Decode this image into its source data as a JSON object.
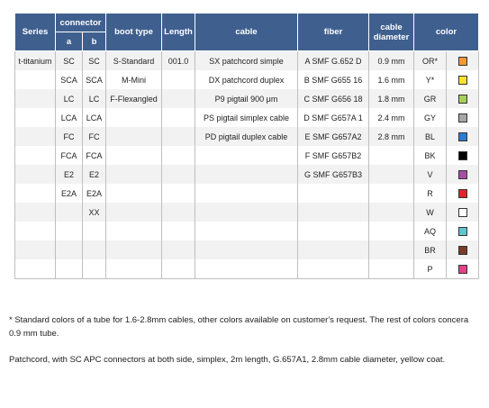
{
  "table": {
    "headers": {
      "series": "Series",
      "connector": "connector",
      "conn_a": "a",
      "conn_b": "b",
      "boot_type": "boot type",
      "length": "Length",
      "cable": "cable",
      "fiber": "fiber",
      "cable_diameter": "cable diameter",
      "color": "color"
    },
    "rows": [
      {
        "series": "t-titanium",
        "a": "SC",
        "b": "SC",
        "boot": "S-Standard",
        "length": "001.0",
        "cable": "SX patchcord simple",
        "fiber": "A SMF G.652 D",
        "diameter": "0.9 mm",
        "color_name": "OR*",
        "color_hex": "#f39a35"
      },
      {
        "series": "",
        "a": "SCA",
        "b": "SCA",
        "boot": "M-Mini",
        "length": "",
        "cable": "DX patchcord duplex",
        "fiber": "B SMF G655 16",
        "diameter": "1.6 mm",
        "color_name": "Y*",
        "color_hex": "#ffe233"
      },
      {
        "series": "",
        "a": "LC",
        "b": "LC",
        "boot": "F-Flexangled",
        "length": "",
        "cable": "P9 pigtail 900 μm",
        "fiber": "C SMF G656 18",
        "diameter": "1.8 mm",
        "color_name": "GR",
        "color_hex": "#a6cf5a"
      },
      {
        "series": "",
        "a": "LCA",
        "b": "LCA",
        "boot": "",
        "length": "",
        "cable": "PS pigtail simplex cable",
        "fiber": "D SMF G657A 1",
        "diameter": "2.4 mm",
        "color_name": "GY",
        "color_hex": "#a6a6a6"
      },
      {
        "series": "",
        "a": "FC",
        "b": "FC",
        "boot": "",
        "length": "",
        "cable": "PD pigtail duplex cable",
        "fiber": "E SMF G657A2",
        "diameter": "2.8 mm",
        "color_name": "BL",
        "color_hex": "#2e7bd1"
      },
      {
        "series": "",
        "a": "FCA",
        "b": "FCA",
        "boot": "",
        "length": "",
        "cable": "",
        "fiber": "F SMF G657B2",
        "diameter": "",
        "color_name": "BK",
        "color_hex": "#000000"
      },
      {
        "series": "",
        "a": "E2",
        "b": "E2",
        "boot": "",
        "length": "",
        "cable": "",
        "fiber": "G SMF G657B3",
        "diameter": "",
        "color_name": "V",
        "color_hex": "#a64fa6"
      },
      {
        "series": "",
        "a": "E2A",
        "b": "E2A",
        "boot": "",
        "length": "",
        "cable": "",
        "fiber": "",
        "diameter": "",
        "color_name": "R",
        "color_hex": "#e2252b"
      },
      {
        "series": "",
        "a": "",
        "b": "XX",
        "boot": "",
        "length": "",
        "cable": "",
        "fiber": "",
        "diameter": "",
        "color_name": "W",
        "color_hex": "#ffffff"
      },
      {
        "series": "",
        "a": "",
        "b": "",
        "boot": "",
        "length": "",
        "cable": "",
        "fiber": "",
        "diameter": "",
        "color_name": "AQ",
        "color_hex": "#5fc6d0"
      },
      {
        "series": "",
        "a": "",
        "b": "",
        "boot": "",
        "length": "",
        "cable": "",
        "fiber": "",
        "diameter": "",
        "color_name": "BR",
        "color_hex": "#7b3b2b"
      },
      {
        "series": "",
        "a": "",
        "b": "",
        "boot": "",
        "length": "",
        "cable": "",
        "fiber": "",
        "diameter": "",
        "color_name": "P",
        "color_hex": "#e6418a"
      }
    ]
  },
  "notes": {
    "standard_colors": "* Standard colors of a tube for 1.6-2.8mm cables, other colors available on customer's request. The rest of colors concera 0.9 mm tube.",
    "example": "Patchcord, with SC APC connectors at both side, simplex, 2m length, G.657A1, 2.8mm cable diameter, yellow coat."
  }
}
